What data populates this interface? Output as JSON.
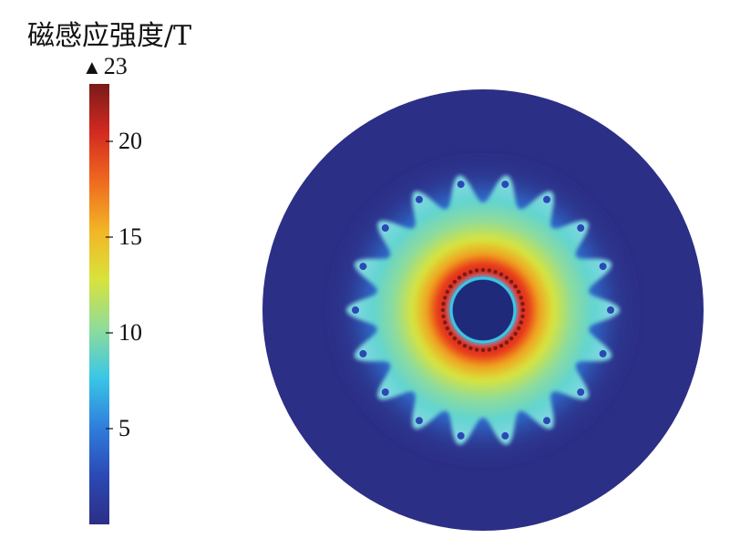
{
  "chart_data": {
    "type": "heatmap",
    "title": "",
    "colorbar": {
      "label": "磁感应强度/T",
      "max_label": "23",
      "min": 0,
      "max": 23,
      "ticks": [
        {
          "value": 20,
          "label": "20"
        },
        {
          "value": 15,
          "label": "15"
        },
        {
          "value": 10,
          "label": "10"
        },
        {
          "value": 5,
          "label": "5"
        }
      ],
      "colormap": [
        "#2c2f86",
        "#2b49b5",
        "#2f7fdc",
        "#39c7e6",
        "#8fdc9a",
        "#d8e33c",
        "#f2b526",
        "#ef6a1f",
        "#d42a20",
        "#7a1a1a"
      ]
    },
    "field_plot": {
      "description_shape": "circular cross-section with toothed ring",
      "outer_region_value": 0.3,
      "tooth_count": 18,
      "inner_hole_value": 0.3,
      "peak_ring_value": 21.5,
      "tooth_tip_value": 9
    }
  }
}
